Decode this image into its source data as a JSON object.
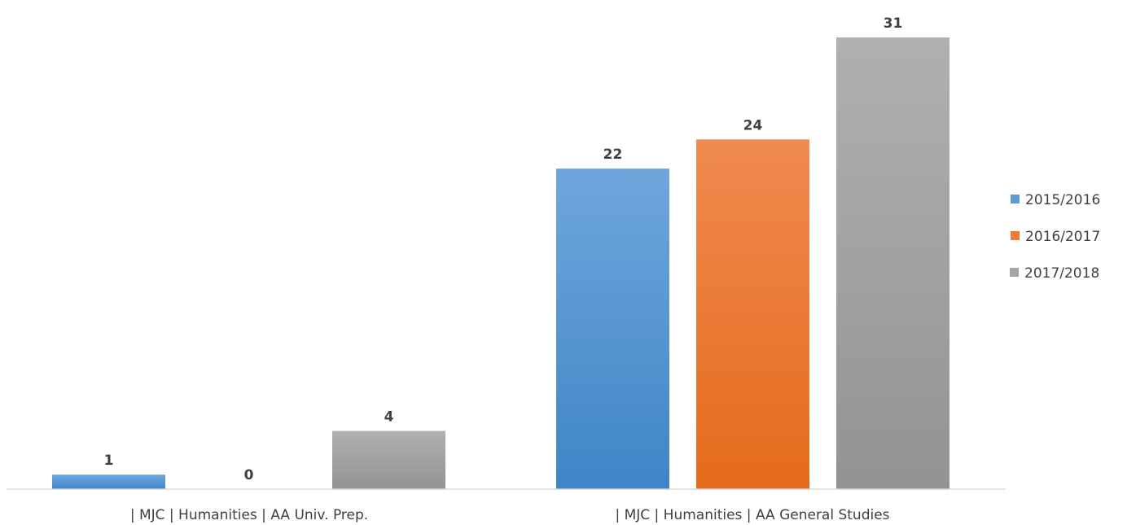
{
  "chart_data": {
    "type": "bar",
    "categories": [
      "| MJC | Humanities | AA Univ. Prep.",
      "| MJC | Humanities | AA General Studies"
    ],
    "series": [
      {
        "name": "2015/2016",
        "values": [
          1,
          22
        ],
        "color": "#5b9bd5"
      },
      {
        "name": "2016/2017",
        "values": [
          0,
          24
        ],
        "color": "#ed7d31"
      },
      {
        "name": "2017/2018",
        "values": [
          4,
          31
        ],
        "color": "#a5a5a5"
      }
    ],
    "title": "",
    "xlabel": "",
    "ylabel": "",
    "ylim": [
      0,
      31
    ],
    "grid": false,
    "legend": "right",
    "data_labels": true
  }
}
